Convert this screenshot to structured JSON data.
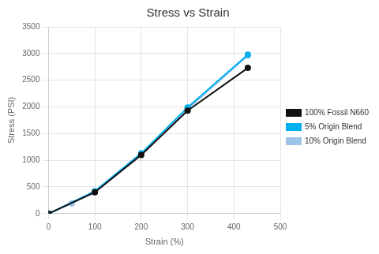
{
  "chart_data": {
    "type": "line",
    "title": "Stress vs Strain",
    "xlabel": "Strain (%)",
    "ylabel": "Stress (PSI)",
    "xlim": [
      0,
      500
    ],
    "ylim": [
      0,
      3500
    ],
    "xticks": [
      0,
      100,
      200,
      300,
      400,
      500
    ],
    "yticks": [
      0,
      500,
      1000,
      1500,
      2000,
      2500,
      3000,
      3500
    ],
    "grid": true,
    "legend": "right",
    "series": [
      {
        "name": "100% Fossil N660",
        "color": "#111111",
        "marker": "circle",
        "x": [
          0,
          100,
          200,
          300,
          430
        ],
        "values": [
          0,
          400,
          1100,
          1930,
          2730
        ]
      },
      {
        "name": "5% Origin Blend",
        "color": "#00b0f0",
        "marker": "circle",
        "x": [
          0,
          100,
          200,
          300,
          430
        ],
        "values": [
          0,
          420,
          1130,
          1990,
          2980
        ]
      },
      {
        "name": "10% Origin Blend",
        "color": "#9dc3e6",
        "marker": "circle",
        "x": [
          0,
          50,
          100,
          200,
          300,
          430
        ],
        "values": [
          0,
          190,
          400,
          1120,
          1960,
          2960
        ]
      }
    ]
  }
}
